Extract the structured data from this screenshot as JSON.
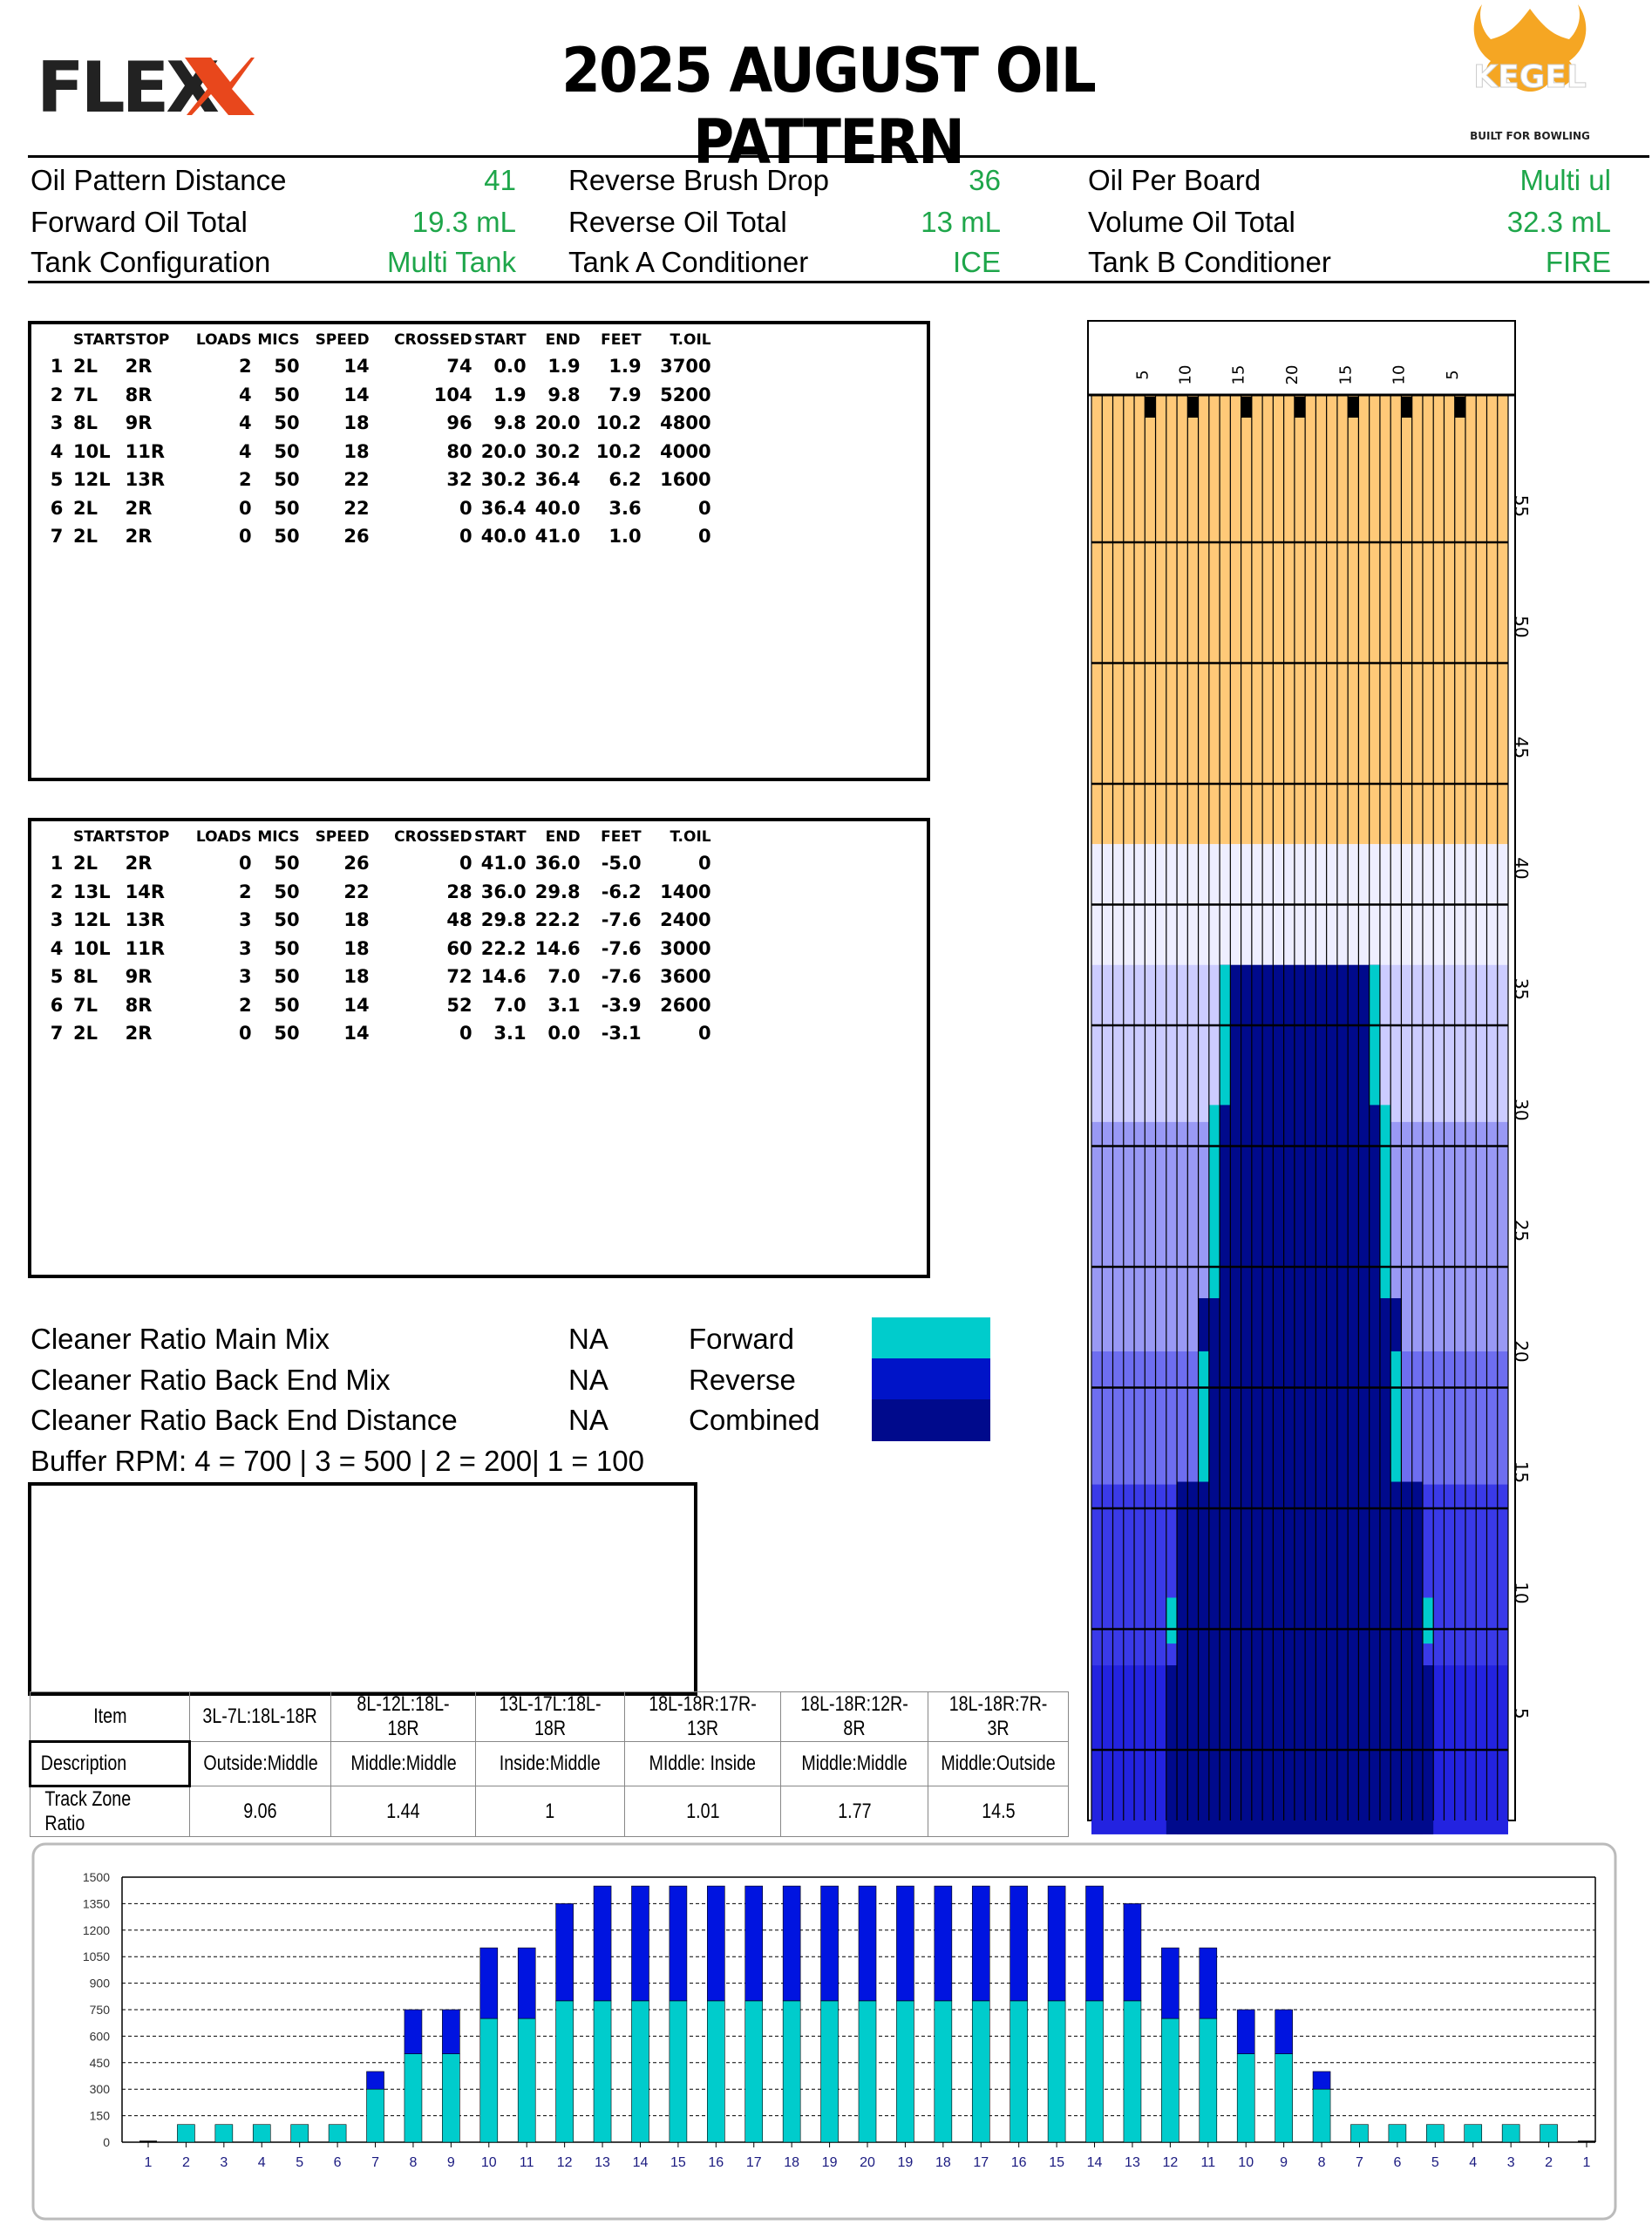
{
  "header": {
    "logo_left": "FLEX",
    "title": "2025 AUGUST OIL PATTERN",
    "logo_right": "KEGEL",
    "logo_right_tagline": "BUILT FOR BOWLING"
  },
  "summary": [
    {
      "label": "Oil Pattern Distance",
      "value": "41"
    },
    {
      "label": "Reverse Brush Drop",
      "value": "36"
    },
    {
      "label": "Oil Per Board",
      "value": "Multi ul"
    },
    {
      "label": "Forward Oil Total",
      "value": "19.3 mL"
    },
    {
      "label": "Reverse Oil Total",
      "value": "13 mL"
    },
    {
      "label": "Volume Oil Total",
      "value": "32.3 mL"
    },
    {
      "label": "Tank Configuration",
      "value": "Multi Tank"
    },
    {
      "label": "Tank A Conditioner",
      "value": "ICE"
    },
    {
      "label": "Tank B Conditioner",
      "value": "FIRE"
    }
  ],
  "table_headers": [
    "START",
    "STOP",
    "LOADS",
    "MICS",
    "SPEED",
    "CROSSED",
    "START",
    "END",
    "FEET",
    "T.OIL"
  ],
  "forward_table": [
    [
      "1",
      "2L",
      "2R",
      "2",
      "50",
      "14",
      "74",
      "0.0",
      "1.9",
      "1.9",
      "3700"
    ],
    [
      "2",
      "7L",
      "8R",
      "4",
      "50",
      "14",
      "104",
      "1.9",
      "9.8",
      "7.9",
      "5200"
    ],
    [
      "3",
      "8L",
      "9R",
      "4",
      "50",
      "18",
      "96",
      "9.8",
      "20.0",
      "10.2",
      "4800"
    ],
    [
      "4",
      "10L",
      "11R",
      "4",
      "50",
      "18",
      "80",
      "20.0",
      "30.2",
      "10.2",
      "4000"
    ],
    [
      "5",
      "12L",
      "13R",
      "2",
      "50",
      "22",
      "32",
      "30.2",
      "36.4",
      "6.2",
      "1600"
    ],
    [
      "6",
      "2L",
      "2R",
      "0",
      "50",
      "22",
      "0",
      "36.4",
      "40.0",
      "3.6",
      "0"
    ],
    [
      "7",
      "2L",
      "2R",
      "0",
      "50",
      "26",
      "0",
      "40.0",
      "41.0",
      "1.0",
      "0"
    ]
  ],
  "reverse_table": [
    [
      "1",
      "2L",
      "2R",
      "0",
      "50",
      "26",
      "0",
      "41.0",
      "36.0",
      "-5.0",
      "0"
    ],
    [
      "2",
      "13L",
      "14R",
      "2",
      "50",
      "22",
      "28",
      "36.0",
      "29.8",
      "-6.2",
      "1400"
    ],
    [
      "3",
      "12L",
      "13R",
      "3",
      "50",
      "18",
      "48",
      "29.8",
      "22.2",
      "-7.6",
      "2400"
    ],
    [
      "4",
      "10L",
      "11R",
      "3",
      "50",
      "18",
      "60",
      "22.2",
      "14.6",
      "-7.6",
      "3000"
    ],
    [
      "5",
      "8L",
      "9R",
      "3",
      "50",
      "18",
      "72",
      "14.6",
      "7.0",
      "-7.6",
      "3600"
    ],
    [
      "6",
      "7L",
      "8R",
      "2",
      "50",
      "14",
      "52",
      "7.0",
      "3.1",
      "-3.9",
      "2600"
    ],
    [
      "7",
      "2L",
      "2R",
      "0",
      "50",
      "14",
      "0",
      "3.1",
      "0.0",
      "-3.1",
      "0"
    ]
  ],
  "cleaner": {
    "rows": [
      {
        "label": "Cleaner Ratio Main Mix",
        "value": "NA",
        "legend": "Forward",
        "color": "#00cccc"
      },
      {
        "label": "Cleaner Ratio Back End Mix",
        "value": "NA",
        "legend": "Reverse",
        "color": "#0014c8"
      },
      {
        "label": "Cleaner Ratio Back End Distance",
        "value": "NA",
        "legend": "Combined",
        "color": "#000a8c"
      }
    ],
    "buffer_rpm": "Buffer RPM: 4 = 700 | 3 = 500 | 2 = 200| 1 = 100"
  },
  "ratio_table": {
    "headers": [
      "Item",
      "3L-7L:18L-18R",
      "8L-12L:18L-18R",
      "13L-17L:18L-18R",
      "18L-18R:17R-13R",
      "18L-18R:12R-8R",
      "18L-18R:7R-3R"
    ],
    "rows": [
      [
        "Description",
        "Outside:Middle",
        "Middle:Middle",
        "Inside:Middle",
        "MIddle: Inside",
        "Middle:Middle",
        "Middle:Outside"
      ],
      [
        "Track Zone Ratio",
        "9.06",
        "1.44",
        "1",
        "1.01",
        "1.77",
        "14.5"
      ]
    ]
  },
  "lane_graph": {
    "pattern_length_ft": 41,
    "reverse_drop_ft": 36,
    "arrow_labels": [
      "5",
      "10",
      "15",
      "20",
      "15",
      "10",
      "5"
    ],
    "distance_labels": [
      "55",
      "50",
      "45",
      "40",
      "35",
      "30",
      "25",
      "20",
      "15",
      "10",
      "5"
    ],
    "colors": {
      "dry": "#ffc978",
      "forward": "#00cccc",
      "combined": "#000a8c"
    }
  },
  "chart_data": {
    "type": "bar",
    "categories": [
      "1",
      "2",
      "3",
      "4",
      "5",
      "6",
      "7",
      "8",
      "9",
      "10",
      "11",
      "12",
      "13",
      "14",
      "15",
      "16",
      "17",
      "18",
      "19",
      "20",
      "19",
      "18",
      "17",
      "16",
      "15",
      "14",
      "13",
      "12",
      "11",
      "10",
      "9",
      "8",
      "7",
      "6",
      "5",
      "4",
      "3",
      "2",
      "1"
    ],
    "series": [
      {
        "values": [
          0,
          100,
          100,
          100,
          100,
          100,
          300,
          500,
          500,
          700,
          700,
          800,
          800,
          800,
          800,
          800,
          800,
          800,
          800,
          800,
          800,
          800,
          800,
          800,
          800,
          800,
          800,
          700,
          700,
          500,
          500,
          300,
          100,
          100,
          100,
          100,
          100,
          100,
          0
        ],
        "color": "#00cccc"
      },
      {
        "values": [
          0,
          0,
          0,
          0,
          0,
          0,
          100,
          250,
          250,
          400,
          400,
          550,
          650,
          650,
          650,
          650,
          650,
          650,
          650,
          650,
          650,
          650,
          650,
          650,
          650,
          650,
          550,
          400,
          400,
          250,
          250,
          100,
          0,
          0,
          0,
          0,
          0,
          0,
          0
        ],
        "color": "#0014e0"
      }
    ],
    "stacked": true,
    "ylim": [
      0,
      1500
    ],
    "yticks": [
      0,
      150,
      300,
      450,
      600,
      750,
      900,
      1050,
      1200,
      1350,
      1500
    ],
    "grid": true
  }
}
